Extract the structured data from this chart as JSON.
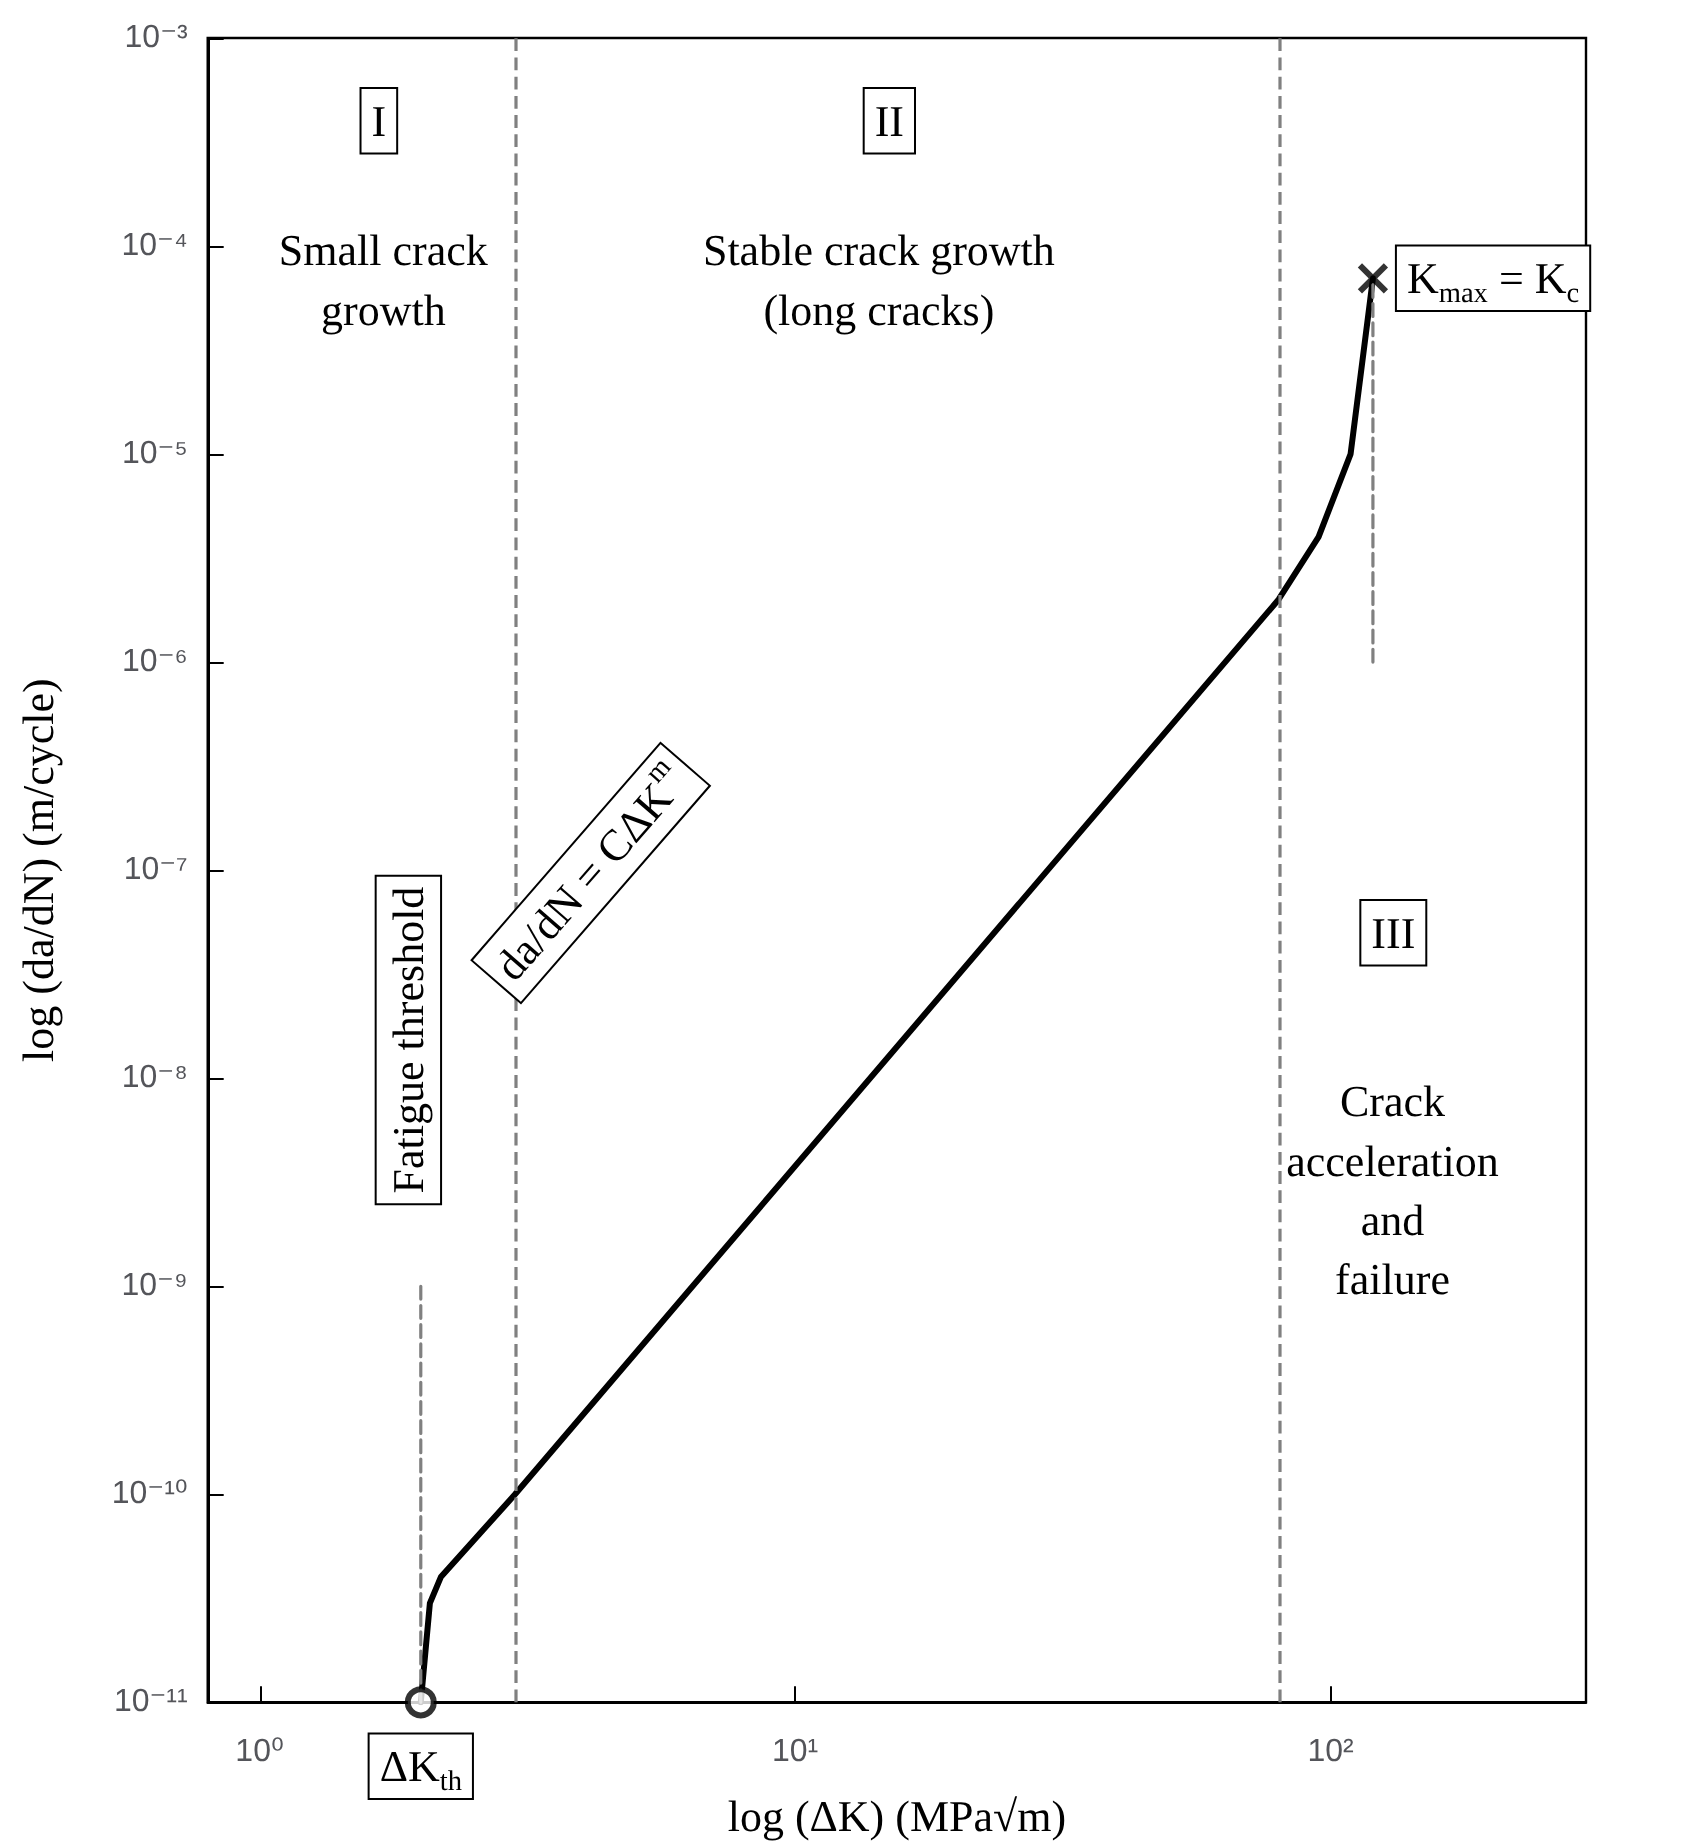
{
  "chart_data": {
    "type": "line",
    "log": "xy",
    "xlabel": "log (ΔK) (MPa√m)",
    "ylabel": "log (da/dN) (m/cycle)",
    "xlim": [
      0.8,
      300
    ],
    "xticks": [
      {
        "value": 1,
        "label": "10⁰"
      },
      {
        "value": 10,
        "label": "10¹"
      },
      {
        "value": 100,
        "label": "10²"
      }
    ],
    "ylim": [
      1e-11,
      0.001
    ],
    "yticks": [
      {
        "value": 1e-11,
        "label": "10⁻¹¹"
      },
      {
        "value": 1e-10,
        "label": "10⁻¹⁰"
      },
      {
        "value": 1e-09,
        "label": "10⁻⁹"
      },
      {
        "value": 1e-08,
        "label": "10⁻⁸"
      },
      {
        "value": 1e-07,
        "label": "10⁻⁷"
      },
      {
        "value": 1e-06,
        "label": "10⁻⁶"
      },
      {
        "value": 1e-05,
        "label": "10⁻⁵"
      },
      {
        "value": 0.0001,
        "label": "10⁻⁴"
      },
      {
        "value": 0.001,
        "label": "10⁻³"
      }
    ],
    "series": [
      {
        "color": "#000000",
        "marker": "none",
        "line_style": "solid",
        "x": [
          2,
          2.08,
          2.18,
          3,
          80,
          95,
          109,
          120
        ],
        "values": [
          1e-11,
          3e-11,
          4e-11,
          1e-10,
          2e-06,
          4e-06,
          1e-05,
          7e-05
        ]
      },
      {
        "color": "#808080",
        "marker": "none",
        "line_style": "dashed",
        "x": [
          2,
          2
        ],
        "values": [
          1e-11,
          1e-09
        ]
      },
      {
        "color": "#808080",
        "marker": "none",
        "line_style": "dashed",
        "x": [
          120,
          120
        ],
        "values": [
          1e-06,
          7e-05
        ]
      },
      {
        "type": "scatter",
        "color": "#000000",
        "marker": "circle",
        "x": [
          2
        ],
        "values": [
          1e-11
        ]
      },
      {
        "type": "scatter",
        "color": "#000000",
        "marker": "cross",
        "x": [
          120
        ],
        "values": [
          7e-05
        ]
      }
    ],
    "ref_lines": [
      {
        "axis": "x",
        "value": 3,
        "color": "#808080",
        "line_style": "dashed"
      },
      {
        "axis": "x",
        "value": 80,
        "color": "#808080",
        "line_style": "dashed"
      }
    ],
    "annotations": [
      {
        "text": "I",
        "x": 1.67,
        "y": 0.0004
      },
      {
        "text": "II",
        "x": 15,
        "y": 0.0004
      },
      {
        "text": "III",
        "x": 131,
        "y": 5e-08
      },
      "Small crack\ngrowth",
      "Stable crack growth\n(long cracks)",
      "Crack\nacceleration\nand\nfailure",
      "Fatigue threshold",
      "da/dN = CΔK$^{m}$",
      {
        "text": "ΔK$_{th}$",
        "x": 2,
        "y": 1e-11
      },
      {
        "text": "K$_{max}$ = K$_{c}$",
        "x": 120,
        "y": 7e-05
      }
    ]
  }
}
